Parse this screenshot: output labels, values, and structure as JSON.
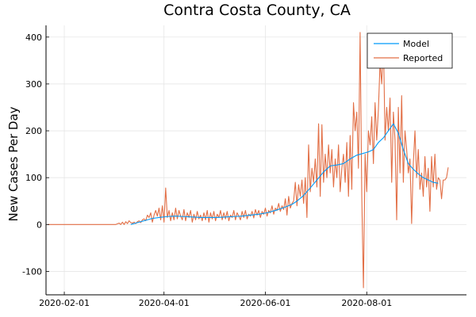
{
  "chart_data": {
    "type": "line",
    "title": "Contra Costa County, CA",
    "xlabel": "",
    "ylabel": "New Cases Per Day",
    "xlim": [
      "2020-01-21",
      "2020-09-30"
    ],
    "ylim": [
      -150,
      425
    ],
    "yticks": [
      -100,
      0,
      100,
      200,
      300,
      400
    ],
    "xticks": [
      {
        "date": "2020-02-01",
        "label": "2020-02-01"
      },
      {
        "date": "2020-04-01",
        "label": "2020-04-01"
      },
      {
        "date": "2020-06-01",
        "label": "2020-06-01"
      },
      {
        "date": "2020-08-01",
        "label": "2020-08-01"
      }
    ],
    "grid": true,
    "legend_position": "top-right",
    "series": [
      {
        "name": "Model",
        "color": "#009AFA",
        "points": [
          [
            "2020-03-12",
            0
          ],
          [
            "2020-03-15",
            3
          ],
          [
            "2020-03-18",
            6
          ],
          [
            "2020-03-21",
            9
          ],
          [
            "2020-03-25",
            13
          ],
          [
            "2020-03-29",
            15
          ],
          [
            "2020-04-03",
            17
          ],
          [
            "2020-04-08",
            18
          ],
          [
            "2020-04-13",
            17
          ],
          [
            "2020-04-18",
            16
          ],
          [
            "2020-04-23",
            15
          ],
          [
            "2020-04-28",
            15
          ],
          [
            "2020-05-03",
            15
          ],
          [
            "2020-05-08",
            16
          ],
          [
            "2020-05-13",
            17
          ],
          [
            "2020-05-18",
            18
          ],
          [
            "2020-05-23",
            20
          ],
          [
            "2020-05-28",
            22
          ],
          [
            "2020-06-02",
            25
          ],
          [
            "2020-06-07",
            30
          ],
          [
            "2020-06-12",
            36
          ],
          [
            "2020-06-17",
            43
          ],
          [
            "2020-06-20",
            50
          ],
          [
            "2020-06-24",
            62
          ],
          [
            "2020-06-28",
            78
          ],
          [
            "2020-07-02",
            95
          ],
          [
            "2020-07-06",
            112
          ],
          [
            "2020-07-10",
            125
          ],
          [
            "2020-07-14",
            127
          ],
          [
            "2020-07-18",
            130
          ],
          [
            "2020-07-22",
            140
          ],
          [
            "2020-07-26",
            148
          ],
          [
            "2020-07-30",
            152
          ],
          [
            "2020-08-02",
            155
          ],
          [
            "2020-08-05",
            160
          ],
          [
            "2020-08-08",
            175
          ],
          [
            "2020-08-11",
            185
          ],
          [
            "2020-08-14",
            200
          ],
          [
            "2020-08-17",
            215
          ],
          [
            "2020-08-20",
            195
          ],
          [
            "2020-08-23",
            160
          ],
          [
            "2020-08-26",
            130
          ],
          [
            "2020-08-29",
            118
          ],
          [
            "2020-09-01",
            108
          ],
          [
            "2020-09-04",
            100
          ],
          [
            "2020-09-07",
            95
          ],
          [
            "2020-09-10",
            90
          ],
          [
            "2020-09-13",
            88
          ]
        ]
      },
      {
        "name": "Reported",
        "color": "#E26F46",
        "points": [
          [
            "2020-01-22",
            0
          ],
          [
            "2020-02-01",
            0
          ],
          [
            "2020-02-10",
            0
          ],
          [
            "2020-02-20",
            0
          ],
          [
            "2020-03-03",
            0
          ],
          [
            "2020-03-05",
            3
          ],
          [
            "2020-03-06",
            0
          ],
          [
            "2020-03-07",
            5
          ],
          [
            "2020-03-08",
            0
          ],
          [
            "2020-03-09",
            6
          ],
          [
            "2020-03-10",
            2
          ],
          [
            "2020-03-11",
            8
          ],
          [
            "2020-03-12",
            4
          ],
          [
            "2020-03-13",
            3
          ],
          [
            "2020-03-14",
            5
          ],
          [
            "2020-03-15",
            2
          ],
          [
            "2020-03-16",
            6
          ],
          [
            "2020-03-17",
            8
          ],
          [
            "2020-03-18",
            4
          ],
          [
            "2020-03-19",
            10
          ],
          [
            "2020-03-20",
            12
          ],
          [
            "2020-03-21",
            8
          ],
          [
            "2020-03-22",
            20
          ],
          [
            "2020-03-23",
            15
          ],
          [
            "2020-03-24",
            25
          ],
          [
            "2020-03-25",
            5
          ],
          [
            "2020-03-26",
            20
          ],
          [
            "2020-03-27",
            30
          ],
          [
            "2020-03-28",
            18
          ],
          [
            "2020-03-29",
            35
          ],
          [
            "2020-03-30",
            10
          ],
          [
            "2020-03-31",
            40
          ],
          [
            "2020-04-01",
            5
          ],
          [
            "2020-04-02",
            78
          ],
          [
            "2020-04-03",
            15
          ],
          [
            "2020-04-04",
            30
          ],
          [
            "2020-04-05",
            8
          ],
          [
            "2020-04-06",
            25
          ],
          [
            "2020-04-07",
            10
          ],
          [
            "2020-04-08",
            35
          ],
          [
            "2020-04-09",
            12
          ],
          [
            "2020-04-10",
            30
          ],
          [
            "2020-04-11",
            18
          ],
          [
            "2020-04-12",
            10
          ],
          [
            "2020-04-13",
            32
          ],
          [
            "2020-04-14",
            8
          ],
          [
            "2020-04-15",
            25
          ],
          [
            "2020-04-16",
            15
          ],
          [
            "2020-04-17",
            30
          ],
          [
            "2020-04-18",
            5
          ],
          [
            "2020-04-19",
            22
          ],
          [
            "2020-04-20",
            10
          ],
          [
            "2020-04-21",
            28
          ],
          [
            "2020-04-22",
            12
          ],
          [
            "2020-04-23",
            20
          ],
          [
            "2020-04-24",
            8
          ],
          [
            "2020-04-25",
            25
          ],
          [
            "2020-04-26",
            10
          ],
          [
            "2020-04-27",
            30
          ],
          [
            "2020-04-28",
            5
          ],
          [
            "2020-04-29",
            25
          ],
          [
            "2020-04-30",
            12
          ],
          [
            "2020-05-01",
            28
          ],
          [
            "2020-05-02",
            8
          ],
          [
            "2020-05-03",
            22
          ],
          [
            "2020-05-04",
            15
          ],
          [
            "2020-05-05",
            30
          ],
          [
            "2020-05-06",
            10
          ],
          [
            "2020-05-07",
            25
          ],
          [
            "2020-05-08",
            12
          ],
          [
            "2020-05-09",
            28
          ],
          [
            "2020-05-10",
            8
          ],
          [
            "2020-05-11",
            20
          ],
          [
            "2020-05-12",
            15
          ],
          [
            "2020-05-13",
            30
          ],
          [
            "2020-05-14",
            10
          ],
          [
            "2020-05-15",
            25
          ],
          [
            "2020-05-16",
            18
          ],
          [
            "2020-05-17",
            10
          ],
          [
            "2020-05-18",
            28
          ],
          [
            "2020-05-19",
            15
          ],
          [
            "2020-05-20",
            30
          ],
          [
            "2020-05-21",
            12
          ],
          [
            "2020-05-22",
            22
          ],
          [
            "2020-05-23",
            18
          ],
          [
            "2020-05-24",
            28
          ],
          [
            "2020-05-25",
            14
          ],
          [
            "2020-05-26",
            32
          ],
          [
            "2020-05-27",
            20
          ],
          [
            "2020-05-28",
            30
          ],
          [
            "2020-05-29",
            15
          ],
          [
            "2020-05-30",
            28
          ],
          [
            "2020-05-31",
            22
          ],
          [
            "2020-06-01",
            35
          ],
          [
            "2020-06-02",
            18
          ],
          [
            "2020-06-03",
            30
          ],
          [
            "2020-06-04",
            25
          ],
          [
            "2020-06-05",
            40
          ],
          [
            "2020-06-06",
            22
          ],
          [
            "2020-06-07",
            35
          ],
          [
            "2020-06-08",
            30
          ],
          [
            "2020-06-09",
            45
          ],
          [
            "2020-06-10",
            28
          ],
          [
            "2020-06-11",
            40
          ],
          [
            "2020-06-12",
            32
          ],
          [
            "2020-06-13",
            55
          ],
          [
            "2020-06-14",
            20
          ],
          [
            "2020-06-15",
            60
          ],
          [
            "2020-06-16",
            35
          ],
          [
            "2020-06-17",
            45
          ],
          [
            "2020-06-18",
            50
          ],
          [
            "2020-06-19",
            90
          ],
          [
            "2020-06-20",
            40
          ],
          [
            "2020-06-21",
            85
          ],
          [
            "2020-06-22",
            60
          ],
          [
            "2020-06-23",
            95
          ],
          [
            "2020-06-24",
            45
          ],
          [
            "2020-06-25",
            100
          ],
          [
            "2020-06-26",
            15
          ],
          [
            "2020-06-27",
            170
          ],
          [
            "2020-06-28",
            70
          ],
          [
            "2020-06-29",
            120
          ],
          [
            "2020-06-30",
            90
          ],
          [
            "2020-07-01",
            140
          ],
          [
            "2020-07-02",
            80
          ],
          [
            "2020-07-03",
            215
          ],
          [
            "2020-07-04",
            60
          ],
          [
            "2020-07-05",
            213
          ],
          [
            "2020-07-06",
            90
          ],
          [
            "2020-07-07",
            150
          ],
          [
            "2020-07-08",
            100
          ],
          [
            "2020-07-09",
            170
          ],
          [
            "2020-07-10",
            110
          ],
          [
            "2020-07-11",
            160
          ],
          [
            "2020-07-12",
            80
          ],
          [
            "2020-07-13",
            140
          ],
          [
            "2020-07-14",
            100
          ],
          [
            "2020-07-15",
            170
          ],
          [
            "2020-07-16",
            70
          ],
          [
            "2020-07-17",
            120
          ],
          [
            "2020-07-18",
            150
          ],
          [
            "2020-07-19",
            90
          ],
          [
            "2020-07-20",
            175
          ],
          [
            "2020-07-21",
            60
          ],
          [
            "2020-07-22",
            190
          ],
          [
            "2020-07-23",
            75
          ],
          [
            "2020-07-24",
            260
          ],
          [
            "2020-07-25",
            200
          ],
          [
            "2020-07-26",
            240
          ],
          [
            "2020-07-27",
            120
          ],
          [
            "2020-07-28",
            410
          ],
          [
            "2020-07-29",
            60
          ],
          [
            "2020-07-30",
            -135
          ],
          [
            "2020-07-31",
            150
          ],
          [
            "2020-08-01",
            70
          ],
          [
            "2020-08-02",
            200
          ],
          [
            "2020-08-03",
            170
          ],
          [
            "2020-08-04",
            230
          ],
          [
            "2020-08-05",
            130
          ],
          [
            "2020-08-06",
            260
          ],
          [
            "2020-08-07",
            180
          ],
          [
            "2020-08-08",
            245
          ],
          [
            "2020-08-09",
            345
          ],
          [
            "2020-08-10",
            300
          ],
          [
            "2020-08-11",
            400
          ],
          [
            "2020-08-12",
            180
          ],
          [
            "2020-08-13",
            250
          ],
          [
            "2020-08-14",
            200
          ],
          [
            "2020-08-15",
            270
          ],
          [
            "2020-08-16",
            90
          ],
          [
            "2020-08-17",
            240
          ],
          [
            "2020-08-18",
            180
          ],
          [
            "2020-08-19",
            10
          ],
          [
            "2020-08-20",
            250
          ],
          [
            "2020-08-21",
            110
          ],
          [
            "2020-08-22",
            275
          ],
          [
            "2020-08-23",
            90
          ],
          [
            "2020-08-24",
            200
          ],
          [
            "2020-08-25",
            160
          ],
          [
            "2020-08-26",
            110
          ],
          [
            "2020-08-27",
            140
          ],
          [
            "2020-08-28",
            2
          ],
          [
            "2020-08-29",
            130
          ],
          [
            "2020-08-30",
            200
          ],
          [
            "2020-08-31",
            100
          ],
          [
            "2020-09-01",
            160
          ],
          [
            "2020-09-02",
            75
          ],
          [
            "2020-09-03",
            110
          ],
          [
            "2020-09-04",
            60
          ],
          [
            "2020-09-05",
            145
          ],
          [
            "2020-09-06",
            80
          ],
          [
            "2020-09-07",
            120
          ],
          [
            "2020-09-08",
            28
          ],
          [
            "2020-09-09",
            145
          ],
          [
            "2020-09-10",
            80
          ],
          [
            "2020-09-11",
            150
          ],
          [
            "2020-09-12",
            75
          ],
          [
            "2020-09-13",
            100
          ],
          [
            "2020-09-14",
            95
          ],
          [
            "2020-09-15",
            55
          ],
          [
            "2020-09-16",
            95
          ],
          [
            "2020-09-17",
            95
          ],
          [
            "2020-09-18",
            100
          ],
          [
            "2020-09-19",
            122
          ]
        ]
      }
    ]
  }
}
